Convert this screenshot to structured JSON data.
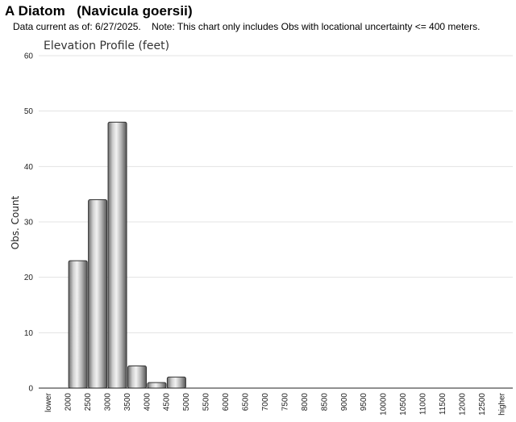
{
  "page": {
    "species_title": "A Diatom   (Navicula goersii)",
    "note": "Data current as of: 6/27/2025.    Note: This chart only includes Obs with locational uncertainty <= 400 meters."
  },
  "chart_data": {
    "type": "bar",
    "title": "Elevation Profile (feet)",
    "xlabel": "",
    "ylabel": "Obs. Count",
    "ylim": [
      0,
      60
    ],
    "yticks": [
      0,
      10,
      20,
      30,
      40,
      50,
      60
    ],
    "grid": true,
    "categories": [
      "lower",
      "2000",
      "2500",
      "3000",
      "3500",
      "4000",
      "4500",
      "5000",
      "5500",
      "6000",
      "6500",
      "7000",
      "7500",
      "8000",
      "8500",
      "9000",
      "9500",
      "10000",
      "10500",
      "11000",
      "11500",
      "12000",
      "12500",
      "higher"
    ],
    "values": [
      0,
      23,
      34,
      48,
      4,
      1,
      2,
      0,
      0,
      0,
      0,
      0,
      0,
      0,
      0,
      0,
      0,
      0,
      0,
      0,
      0,
      0,
      0,
      0
    ],
    "bar_color": "#b0b0b0"
  }
}
